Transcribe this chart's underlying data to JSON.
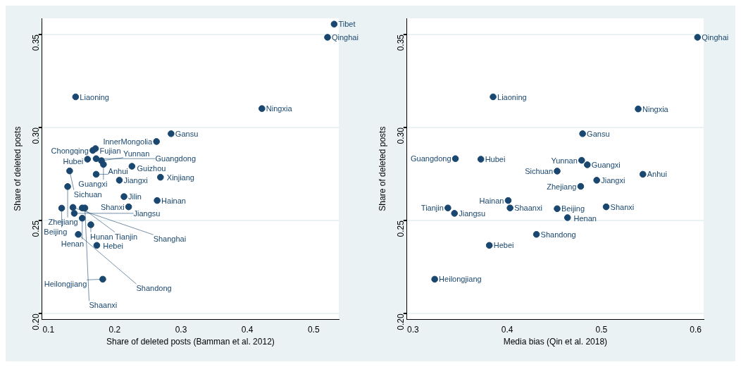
{
  "chart_data": [
    {
      "type": "scatter",
      "xlabel": "Share of deleted posts (Bamman et al. 2012)",
      "ylabel": "Share of deleted posts",
      "xlim": [
        0.0905,
        0.538
      ],
      "ylim": [
        0.197,
        0.3587
      ],
      "xticks": [
        0.1,
        0.2,
        0.3,
        0.4,
        0.5
      ],
      "yticks": [
        {
          "value": 0.2,
          "label": "0.20"
        },
        {
          "value": 0.25,
          "label": "0.25"
        },
        {
          "value": 0.3,
          "label": "0.30"
        },
        {
          "value": 0.35,
          "label": "0.35"
        }
      ],
      "grid": "y",
      "marker": "circle",
      "series": [
        {
          "color": "#1a476f",
          "x": [
            0.531,
            0.521,
            0.141,
            0.422,
            0.285,
            0.263,
            0.171,
            0.167,
            0.159,
            0.172,
            0.18,
            0.183,
            0.226,
            0.132,
            0.172,
            0.207,
            0.269,
            0.129,
            0.214,
            0.264,
            0.221,
            0.12,
            0.137,
            0.151,
            0.155,
            0.139,
            0.151,
            0.164,
            0.145,
            0.173,
            0.182
          ],
          "values": [
            0.3556,
            0.3485,
            0.3165,
            0.3102,
            0.2967,
            0.2925,
            0.2887,
            0.2877,
            0.283,
            0.2833,
            0.2822,
            0.2802,
            0.2792,
            0.2767,
            0.2749,
            0.2717,
            0.2733,
            0.2683,
            0.2629,
            0.2608,
            0.2574,
            0.2567,
            0.2571,
            0.2568,
            0.2568,
            0.2539,
            0.2513,
            0.2478,
            0.2426,
            0.2367,
            0.2185
          ]
        }
      ],
      "annotations": [
        {
          "text": "Tibet",
          "x": 0.531,
          "y": 0.3556
        },
        {
          "text": "Qinghai",
          "x": 0.521,
          "y": 0.3485
        },
        {
          "text": "Liaoning",
          "x": 0.141,
          "y": 0.3165
        },
        {
          "text": "Ningxia",
          "x": 0.422,
          "y": 0.3102
        },
        {
          "text": "Gansu",
          "x": 0.285,
          "y": 0.2967
        },
        {
          "text": "InnerMongolia",
          "x": 0.263,
          "y": 0.2925
        },
        {
          "text": "Fujian",
          "x": 0.171,
          "y": 0.2887
        },
        {
          "text": "Chongqing",
          "x": 0.167,
          "y": 0.2877
        },
        {
          "text": "Hubei",
          "x": 0.159,
          "y": 0.283
        },
        {
          "text": "Guangdong",
          "x": 0.172,
          "y": 0.2833
        },
        {
          "text": "Yunnan",
          "x": 0.18,
          "y": 0.2822
        },
        {
          "text": "Guangxi",
          "x": 0.183,
          "y": 0.2802
        },
        {
          "text": "Guizhou",
          "x": 0.226,
          "y": 0.2792
        },
        {
          "text": "Sichuan",
          "x": 0.132,
          "y": 0.2767
        },
        {
          "text": "Anhui",
          "x": 0.172,
          "y": 0.2749
        },
        {
          "text": "Jiangxi",
          "x": 0.207,
          "y": 0.2717
        },
        {
          "text": "Xinjiang",
          "x": 0.269,
          "y": 0.2733
        },
        {
          "text": "Zhejiang",
          "x": 0.129,
          "y": 0.2683
        },
        {
          "text": "Jilin",
          "x": 0.214,
          "y": 0.2629
        },
        {
          "text": "Hainan",
          "x": 0.264,
          "y": 0.2608
        },
        {
          "text": "Shanxi",
          "x": 0.221,
          "y": 0.2574
        },
        {
          "text": "Beijing",
          "x": 0.12,
          "y": 0.2567
        },
        {
          "text": "Shanghai",
          "x": 0.137,
          "y": 0.2571
        },
        {
          "text": "Tianjin",
          "x": 0.151,
          "y": 0.2568
        },
        {
          "text": "Shaanxi",
          "x": 0.155,
          "y": 0.2568
        },
        {
          "text": "Jiangsu",
          "x": 0.139,
          "y": 0.2539
        },
        {
          "text": "Henan",
          "x": 0.151,
          "y": 0.2513
        },
        {
          "text": "Hunan",
          "x": 0.164,
          "y": 0.2478
        },
        {
          "text": "Shandong",
          "x": 0.145,
          "y": 0.2426
        },
        {
          "text": "Hebei",
          "x": 0.173,
          "y": 0.2367
        },
        {
          "text": "Heilongjiang",
          "x": 0.182,
          "y": 0.2185
        }
      ]
    },
    {
      "type": "scatter",
      "xlabel": "Media bias (Qin et al. 2018)",
      "ylabel": "Share of deleted posts",
      "xlim": [
        0.2936,
        0.6085
      ],
      "ylim": [
        0.197,
        0.3587
      ],
      "xticks": [
        0.3,
        0.4,
        0.5,
        0.6
      ],
      "yticks": [
        {
          "value": 0.2,
          "label": "0.20"
        },
        {
          "value": 0.25,
          "label": "0.25"
        },
        {
          "value": 0.3,
          "label": "0.30"
        },
        {
          "value": 0.35,
          "label": "0.35"
        }
      ],
      "grid": "y",
      "marker": "circle",
      "series": [
        {
          "color": "#1a476f",
          "x": [
            0.602,
            0.385,
            0.539,
            0.48,
            0.345,
            0.372,
            0.479,
            0.485,
            0.453,
            0.544,
            0.495,
            0.478,
            0.401,
            0.337,
            0.403,
            0.453,
            0.505,
            0.344,
            0.464,
            0.431,
            0.381,
            0.323
          ],
          "values": [
            0.3485,
            0.3165,
            0.31,
            0.2967,
            0.2833,
            0.283,
            0.2824,
            0.28,
            0.2766,
            0.2749,
            0.2717,
            0.2684,
            0.2608,
            0.2568,
            0.2568,
            0.2564,
            0.2574,
            0.2539,
            0.2516,
            0.2426,
            0.2367,
            0.2185
          ]
        }
      ],
      "annotations": [
        {
          "text": "Qinghai",
          "x": 0.602,
          "y": 0.3485
        },
        {
          "text": "Liaoning",
          "x": 0.385,
          "y": 0.3165
        },
        {
          "text": "Ningxia",
          "x": 0.539,
          "y": 0.31
        },
        {
          "text": "Gansu",
          "x": 0.48,
          "y": 0.2967
        },
        {
          "text": "Guangdong",
          "x": 0.345,
          "y": 0.2833
        },
        {
          "text": "Hubei",
          "x": 0.372,
          "y": 0.283
        },
        {
          "text": "Yunnan",
          "x": 0.479,
          "y": 0.2824
        },
        {
          "text": "Guangxi",
          "x": 0.485,
          "y": 0.28
        },
        {
          "text": "Sichuan",
          "x": 0.453,
          "y": 0.2766
        },
        {
          "text": "Anhui",
          "x": 0.544,
          "y": 0.2749
        },
        {
          "text": "Jiangxi",
          "x": 0.495,
          "y": 0.2717
        },
        {
          "text": "Zhejiang",
          "x": 0.478,
          "y": 0.2684
        },
        {
          "text": "Hainan",
          "x": 0.401,
          "y": 0.2608
        },
        {
          "text": "Tianjin",
          "x": 0.337,
          "y": 0.2568
        },
        {
          "text": "Shaanxi",
          "x": 0.403,
          "y": 0.2568
        },
        {
          "text": "Beijing",
          "x": 0.453,
          "y": 0.2564
        },
        {
          "text": "Shanxi",
          "x": 0.505,
          "y": 0.2574
        },
        {
          "text": "Jiangsu",
          "x": 0.344,
          "y": 0.2539
        },
        {
          "text": "Henan",
          "x": 0.464,
          "y": 0.2516
        },
        {
          "text": "Shandong",
          "x": 0.431,
          "y": 0.2426
        },
        {
          "text": "Hebei",
          "x": 0.381,
          "y": 0.2367
        },
        {
          "text": "Heilongjiang",
          "x": 0.323,
          "y": 0.2185
        }
      ]
    }
  ]
}
